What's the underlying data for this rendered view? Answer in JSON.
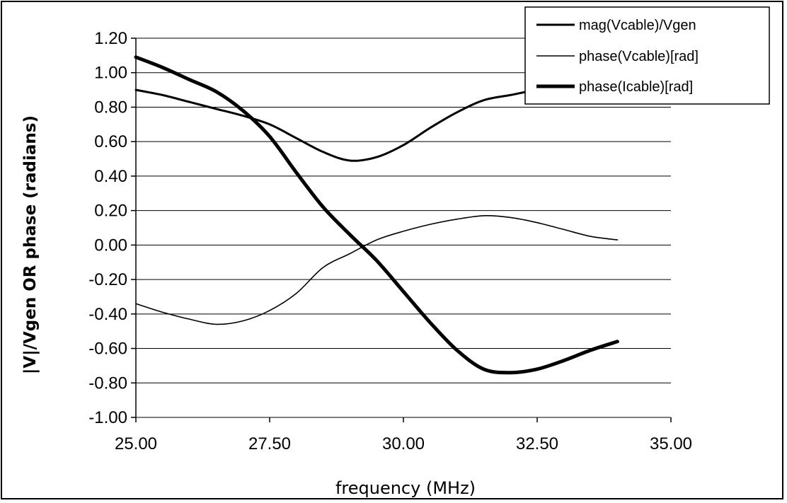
{
  "chart_data": {
    "type": "line",
    "xlabel": "frequency (MHz)",
    "ylabel": "|V|/Vgen OR phase (radians)",
    "xlim": [
      25.0,
      35.0
    ],
    "ylim": [
      -1.0,
      1.2
    ],
    "x_ticks": [
      "25.00",
      "27.50",
      "30.00",
      "32.50",
      "35.00"
    ],
    "y_ticks": [
      "1.20",
      "1.00",
      "0.80",
      "0.60",
      "0.40",
      "0.20",
      "0.00",
      "-0.20",
      "-0.40",
      "-0.60",
      "-0.80",
      "-1.00"
    ],
    "grid": "horizontal",
    "legend_position": "top-right",
    "series": [
      {
        "name": "mag(Vcable)/Vgen",
        "stroke_width": 3,
        "color": "#000000",
        "x": [
          25.0,
          25.5,
          26.0,
          26.5,
          27.0,
          27.5,
          28.0,
          28.5,
          29.0,
          29.5,
          30.0,
          30.5,
          31.0,
          31.5,
          32.0,
          32.5,
          33.0
        ],
        "y": [
          0.9,
          0.87,
          0.83,
          0.79,
          0.75,
          0.7,
          0.62,
          0.54,
          0.49,
          0.51,
          0.58,
          0.68,
          0.77,
          0.84,
          0.87,
          0.9,
          0.91
        ]
      },
      {
        "name": "phase(Vcable)[rad]",
        "stroke_width": 1.6,
        "color": "#000000",
        "x": [
          25.0,
          25.5,
          26.0,
          26.5,
          27.0,
          27.5,
          28.0,
          28.5,
          29.0,
          29.5,
          30.0,
          30.5,
          31.0,
          31.5,
          32.0,
          32.5,
          33.0,
          33.5,
          34.0
        ],
        "y": [
          -0.34,
          -0.39,
          -0.43,
          -0.46,
          -0.44,
          -0.38,
          -0.28,
          -0.13,
          -0.05,
          0.03,
          0.08,
          0.12,
          0.15,
          0.17,
          0.16,
          0.13,
          0.09,
          0.05,
          0.03
        ]
      },
      {
        "name": "phase(Icable)[rad]",
        "stroke_width": 5,
        "color": "#000000",
        "x": [
          25.0,
          25.5,
          26.0,
          26.5,
          27.0,
          27.5,
          28.0,
          28.5,
          29.0,
          29.5,
          30.0,
          30.5,
          31.0,
          31.5,
          32.0,
          32.5,
          33.0,
          33.5,
          34.0
        ],
        "y": [
          1.09,
          1.03,
          0.96,
          0.89,
          0.78,
          0.63,
          0.42,
          0.22,
          0.06,
          -0.09,
          -0.27,
          -0.45,
          -0.61,
          -0.72,
          -0.74,
          -0.72,
          -0.67,
          -0.61,
          -0.56
        ]
      }
    ]
  }
}
